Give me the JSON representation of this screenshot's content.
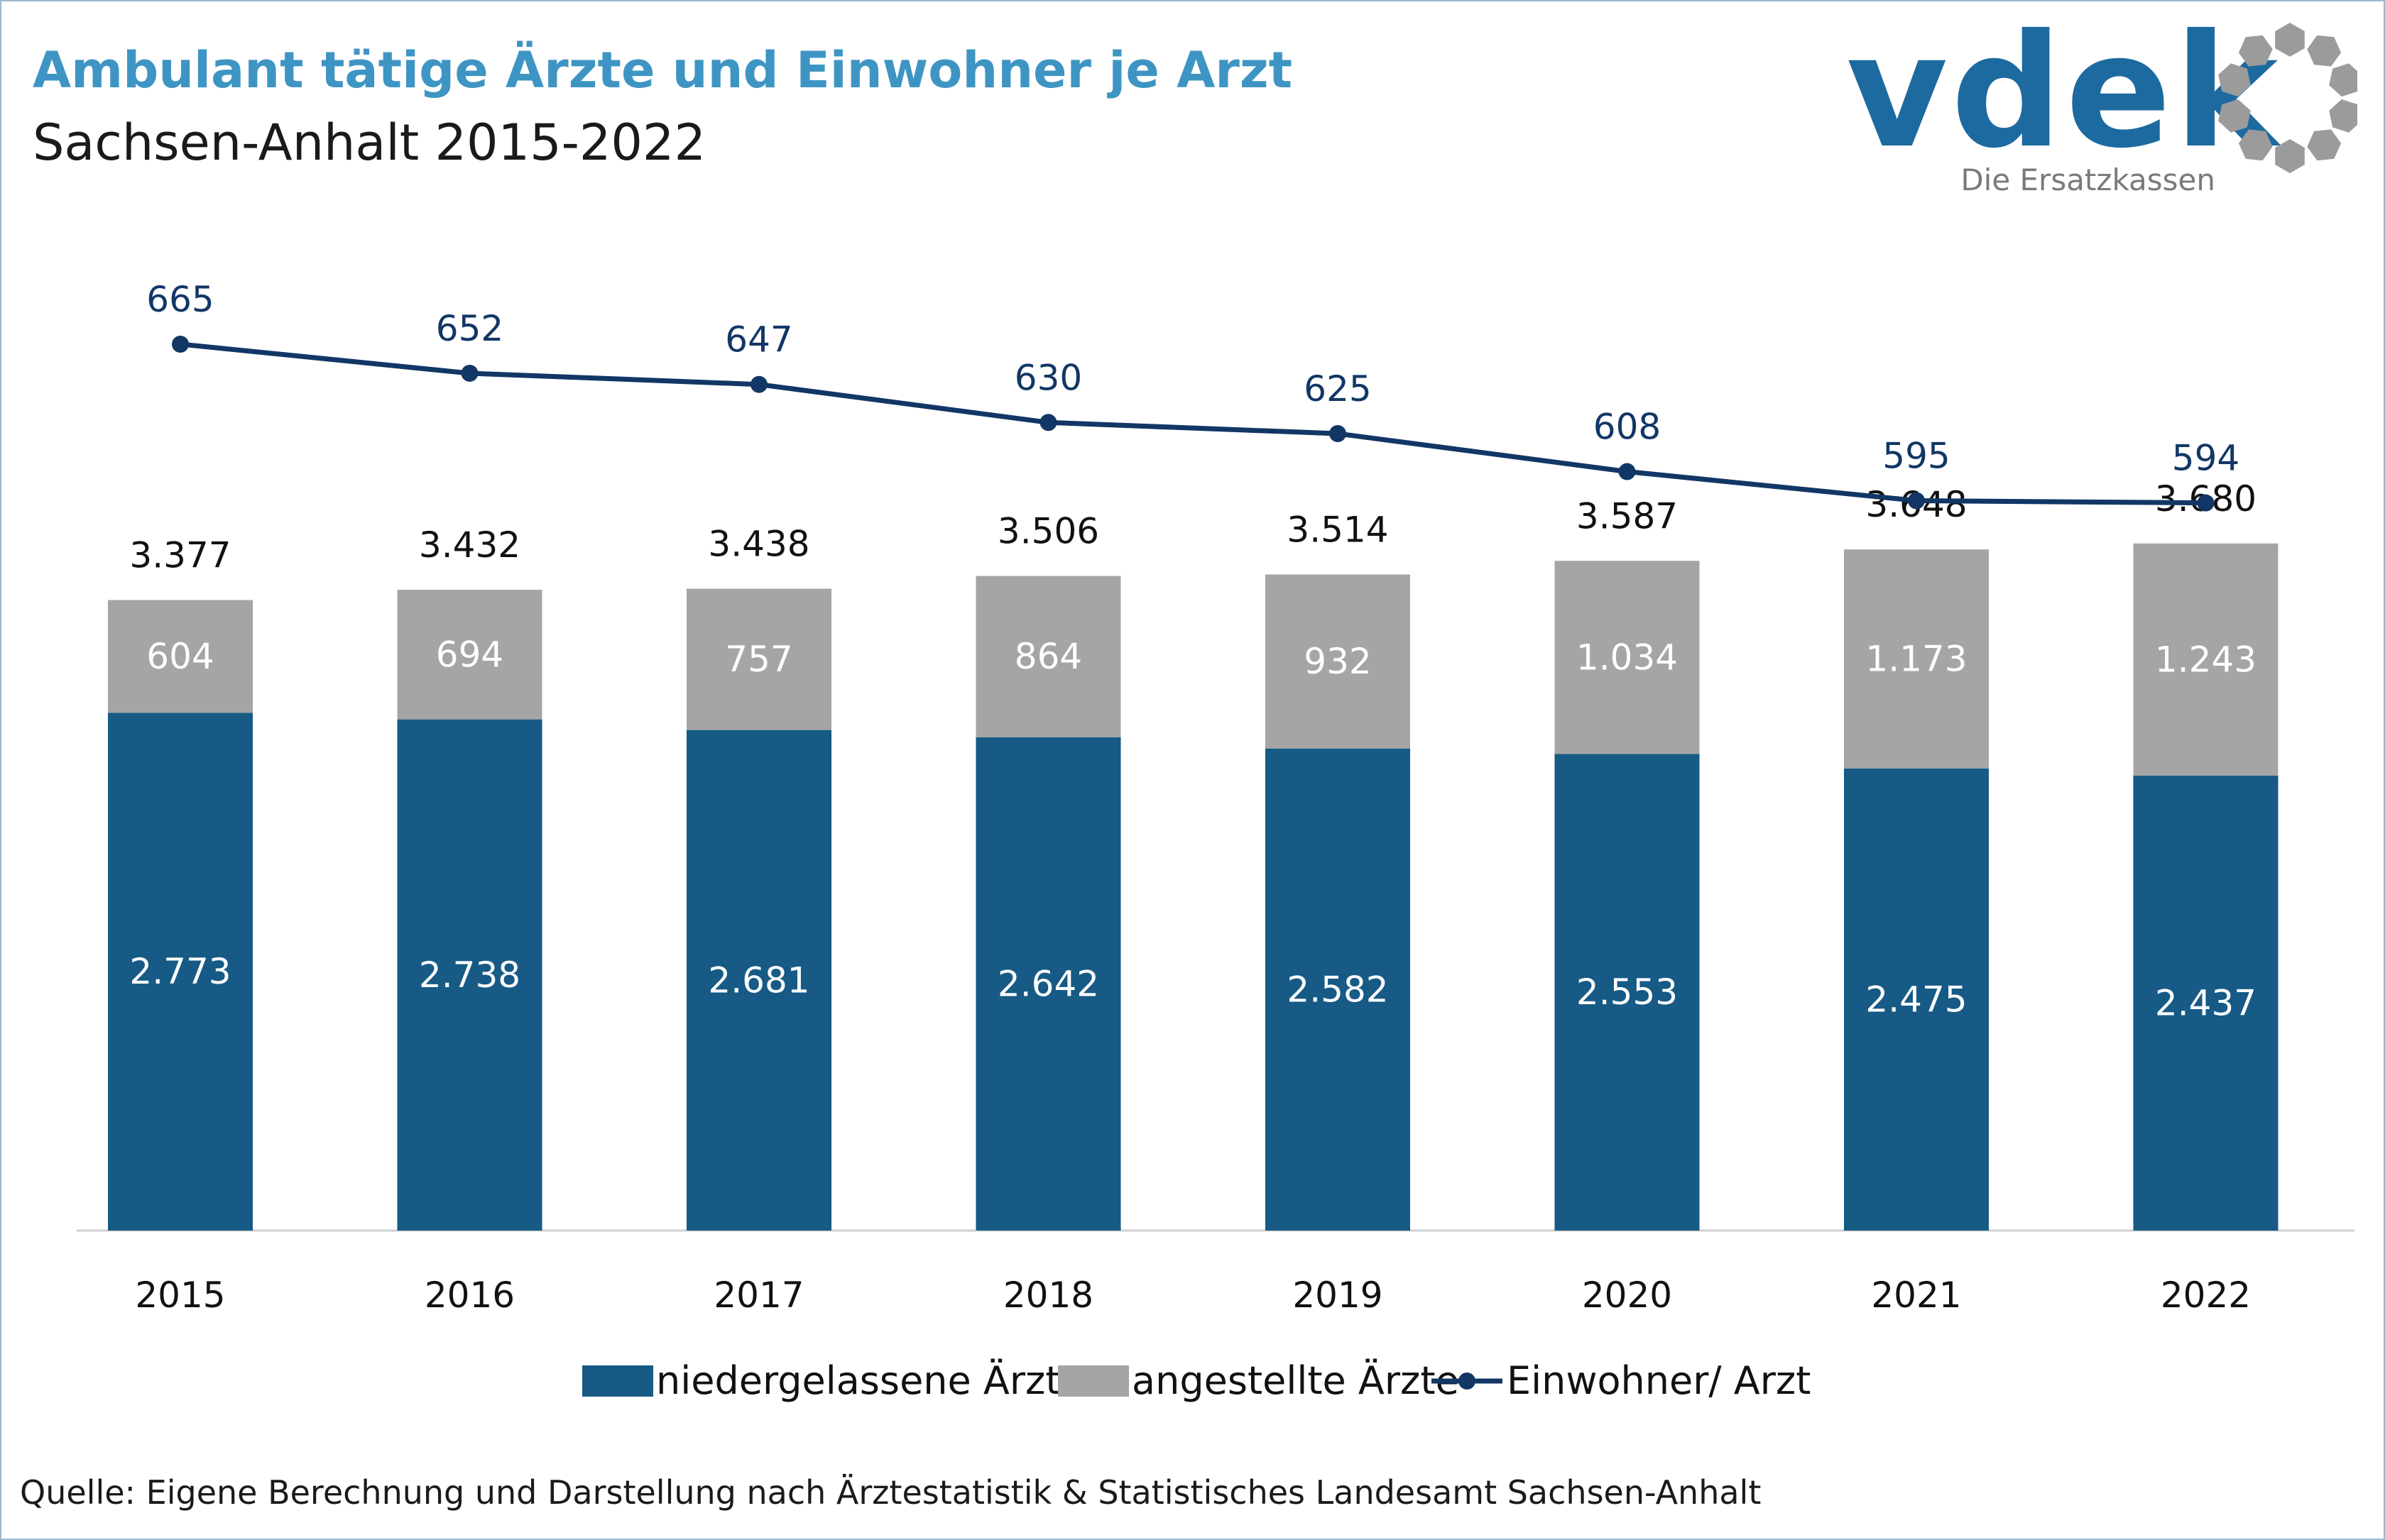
{
  "title": "Ambulant tätige Ärzte und Einwohner je Arzt",
  "subtitle": "Sachsen-Anhalt 2015-2022",
  "logo": {
    "text": "vdek",
    "tagline": "Die Ersatzkassen",
    "icon": "vdek-ring-icon"
  },
  "source": "Quelle: Eigene Berechnung und Darstellung nach Ärztestatistik & Statistisches Landesamt Sachsen-Anhalt",
  "colors": {
    "niedergelassen": "#165a85",
    "angestellt": "#a5a5a5",
    "line": "#123766",
    "title": "#3e95c3",
    "axis": "#d0d0d0"
  },
  "chart_data": {
    "type": "bar",
    "stacked": true,
    "categories": [
      "2015",
      "2016",
      "2017",
      "2018",
      "2019",
      "2020",
      "2021",
      "2022"
    ],
    "series": [
      {
        "name": "niedergelassene Ärzte",
        "type": "bar",
        "values": [
          2773,
          2738,
          2681,
          2642,
          2582,
          2553,
          2475,
          2437
        ],
        "labels": [
          "2.773",
          "2.738",
          "2.681",
          "2.642",
          "2.582",
          "2.553",
          "2.475",
          "2.437"
        ]
      },
      {
        "name": "angestellte Ärzte",
        "type": "bar",
        "values": [
          604,
          694,
          757,
          864,
          932,
          1034,
          1173,
          1243
        ],
        "labels": [
          "604",
          "694",
          "757",
          "864",
          "932",
          "1.034",
          "1.173",
          "1.243"
        ]
      },
      {
        "name": "Einwohner/ Arzt",
        "type": "line",
        "values": [
          665,
          652,
          647,
          630,
          625,
          608,
          595,
          594
        ],
        "labels": [
          "665",
          "652",
          "647",
          "630",
          "625",
          "608",
          "595",
          "594"
        ]
      }
    ],
    "totals": {
      "values": [
        3377,
        3432,
        3438,
        3506,
        3514,
        3587,
        3648,
        3680
      ],
      "labels": [
        "3.377",
        "3.432",
        "3.438",
        "3.506",
        "3.514",
        "3.587",
        "3.648",
        "3.680"
      ]
    },
    "legend_position": "bottom",
    "grid": false
  }
}
